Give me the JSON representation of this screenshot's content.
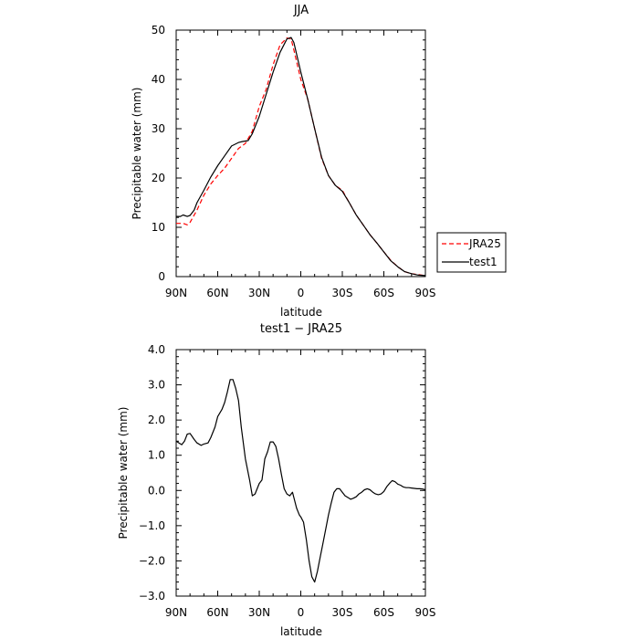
{
  "chart_data": [
    {
      "type": "line",
      "title": "JJA",
      "xlabel": "latitude",
      "ylabel": "Precipitable water (mm)",
      "xlim": [
        90,
        -90
      ],
      "ylim": [
        0,
        50
      ],
      "x_ticks": [
        {
          "value": 90,
          "label": "90N"
        },
        {
          "value": 60,
          "label": "60N"
        },
        {
          "value": 30,
          "label": "30N"
        },
        {
          "value": 0,
          "label": "0"
        },
        {
          "value": -30,
          "label": "30S"
        },
        {
          "value": -60,
          "label": "60S"
        },
        {
          "value": -90,
          "label": "90S"
        }
      ],
      "y_ticks": [
        {
          "value": 0,
          "label": "0"
        },
        {
          "value": 10,
          "label": "10"
        },
        {
          "value": 20,
          "label": "20"
        },
        {
          "value": 30,
          "label": "30"
        },
        {
          "value": 40,
          "label": "40"
        },
        {
          "value": 50,
          "label": "50"
        }
      ],
      "legend": {
        "placement": "right"
      },
      "series": [
        {
          "name": "JRA25",
          "color": "#ff0000",
          "dash": "dashed",
          "x": [
            90,
            85,
            82,
            80,
            75,
            70,
            65,
            60,
            55,
            50,
            45,
            40,
            35,
            30,
            25,
            20,
            15,
            10,
            7,
            5,
            0,
            -5,
            -10,
            -15,
            -20,
            -25,
            -30,
            -35,
            -40,
            -45,
            -50,
            -55,
            -60,
            -65,
            -70,
            -75,
            -80,
            -85,
            -90
          ],
          "y": [
            10.8,
            10.8,
            10.5,
            11,
            13.5,
            16.5,
            18.8,
            20.5,
            22,
            24,
            26,
            27,
            29.5,
            34.5,
            38,
            43,
            47,
            48.4,
            48.2,
            46,
            40,
            36,
            30,
            24,
            20.5,
            18.5,
            17.5,
            15,
            12.5,
            10.5,
            8.5,
            6.8,
            5,
            3.3,
            2,
            1,
            0.6,
            0.4,
            0.2
          ]
        },
        {
          "name": "test1",
          "color": "#000000",
          "dash": "solid",
          "x": [
            90,
            87,
            85,
            82,
            80,
            77,
            75,
            70,
            65,
            60,
            55,
            50,
            45,
            42,
            38,
            35,
            30,
            25,
            20,
            15,
            10,
            7,
            5,
            0,
            -5,
            -10,
            -15,
            -20,
            -25,
            -30,
            -35,
            -40,
            -45,
            -50,
            -55,
            -60,
            -65,
            -70,
            -75,
            -80,
            -85,
            -90
          ],
          "y": [
            12.2,
            12.2,
            12.5,
            12.2,
            12.4,
            13.5,
            15,
            17.5,
            20.2,
            22.5,
            24.5,
            26.5,
            27.2,
            27.4,
            27.6,
            29,
            32.5,
            37,
            41.5,
            45.5,
            48.2,
            48.5,
            47.5,
            41.5,
            36,
            30,
            24.2,
            20.5,
            18.5,
            17.3,
            15,
            12.5,
            10.5,
            8.5,
            6.8,
            5,
            3.2,
            2,
            1,
            0.6,
            0.3,
            0.2
          ]
        }
      ]
    },
    {
      "type": "line",
      "title": "test1 − JRA25",
      "xlabel": "latitude",
      "ylabel": "Precipitable water (mm)",
      "xlim": [
        90,
        -90
      ],
      "ylim": [
        -3,
        4
      ],
      "x_ticks": [
        {
          "value": 90,
          "label": "90N"
        },
        {
          "value": 60,
          "label": "60N"
        },
        {
          "value": 30,
          "label": "30N"
        },
        {
          "value": 0,
          "label": "0"
        },
        {
          "value": -30,
          "label": "30S"
        },
        {
          "value": -60,
          "label": "60S"
        },
        {
          "value": -90,
          "label": "90S"
        }
      ],
      "y_ticks": [
        {
          "value": -3,
          "label": "−3.0"
        },
        {
          "value": -2,
          "label": "−2.0"
        },
        {
          "value": -1,
          "label": "−1.0"
        },
        {
          "value": 0,
          "label": "0.0"
        },
        {
          "value": 1,
          "label": "1.0"
        },
        {
          "value": 2,
          "label": "2.0"
        },
        {
          "value": 3,
          "label": "3.0"
        },
        {
          "value": 4,
          "label": "4.0"
        }
      ],
      "series": [
        {
          "color": "#000000",
          "dash": "solid",
          "x": [
            90,
            88,
            86,
            84,
            82,
            80,
            77,
            75,
            72,
            70,
            67,
            65,
            62,
            60,
            57,
            55,
            53,
            51,
            49,
            47,
            45,
            43,
            40,
            37,
            35,
            33,
            30,
            28,
            26,
            24,
            22,
            20,
            18,
            16,
            14,
            12,
            10,
            8,
            6,
            5,
            3,
            1,
            0,
            -2,
            -4,
            -6,
            -8,
            -10,
            -12,
            -14,
            -16,
            -18,
            -20,
            -22,
            -24,
            -26,
            -28,
            -30,
            -32,
            -34,
            -36,
            -38,
            -40,
            -42,
            -44,
            -46,
            -48,
            -50,
            -52,
            -54,
            -56,
            -58,
            -60,
            -62,
            -64,
            -66,
            -68,
            -70,
            -72,
            -74,
            -76,
            -78,
            -80,
            -82,
            -84,
            -86,
            -88,
            -90
          ],
          "y": [
            1.4,
            1.35,
            1.3,
            1.4,
            1.6,
            1.62,
            1.45,
            1.35,
            1.28,
            1.32,
            1.35,
            1.5,
            1.8,
            2.1,
            2.3,
            2.5,
            2.8,
            3.15,
            3.15,
            2.9,
            2.55,
            1.8,
            0.9,
            0.3,
            -0.15,
            -0.1,
            0.2,
            0.3,
            0.9,
            1.1,
            1.38,
            1.38,
            1.25,
            0.9,
            0.45,
            0.05,
            -0.1,
            -0.15,
            -0.05,
            -0.2,
            -0.5,
            -0.7,
            -0.75,
            -0.9,
            -1.4,
            -2.0,
            -2.45,
            -2.6,
            -2.3,
            -1.9,
            -1.5,
            -1.1,
            -0.7,
            -0.35,
            -0.05,
            0.05,
            0.05,
            -0.05,
            -0.15,
            -0.2,
            -0.25,
            -0.22,
            -0.18,
            -0.1,
            -0.05,
            0.02,
            0.05,
            0.02,
            -0.05,
            -0.1,
            -0.12,
            -0.1,
            -0.03,
            0.1,
            0.2,
            0.28,
            0.25,
            0.18,
            0.15,
            0.1,
            0.08,
            0.08,
            0.07,
            0.06,
            0.05,
            0.05,
            0.04,
            0.02
          ]
        }
      ]
    }
  ]
}
